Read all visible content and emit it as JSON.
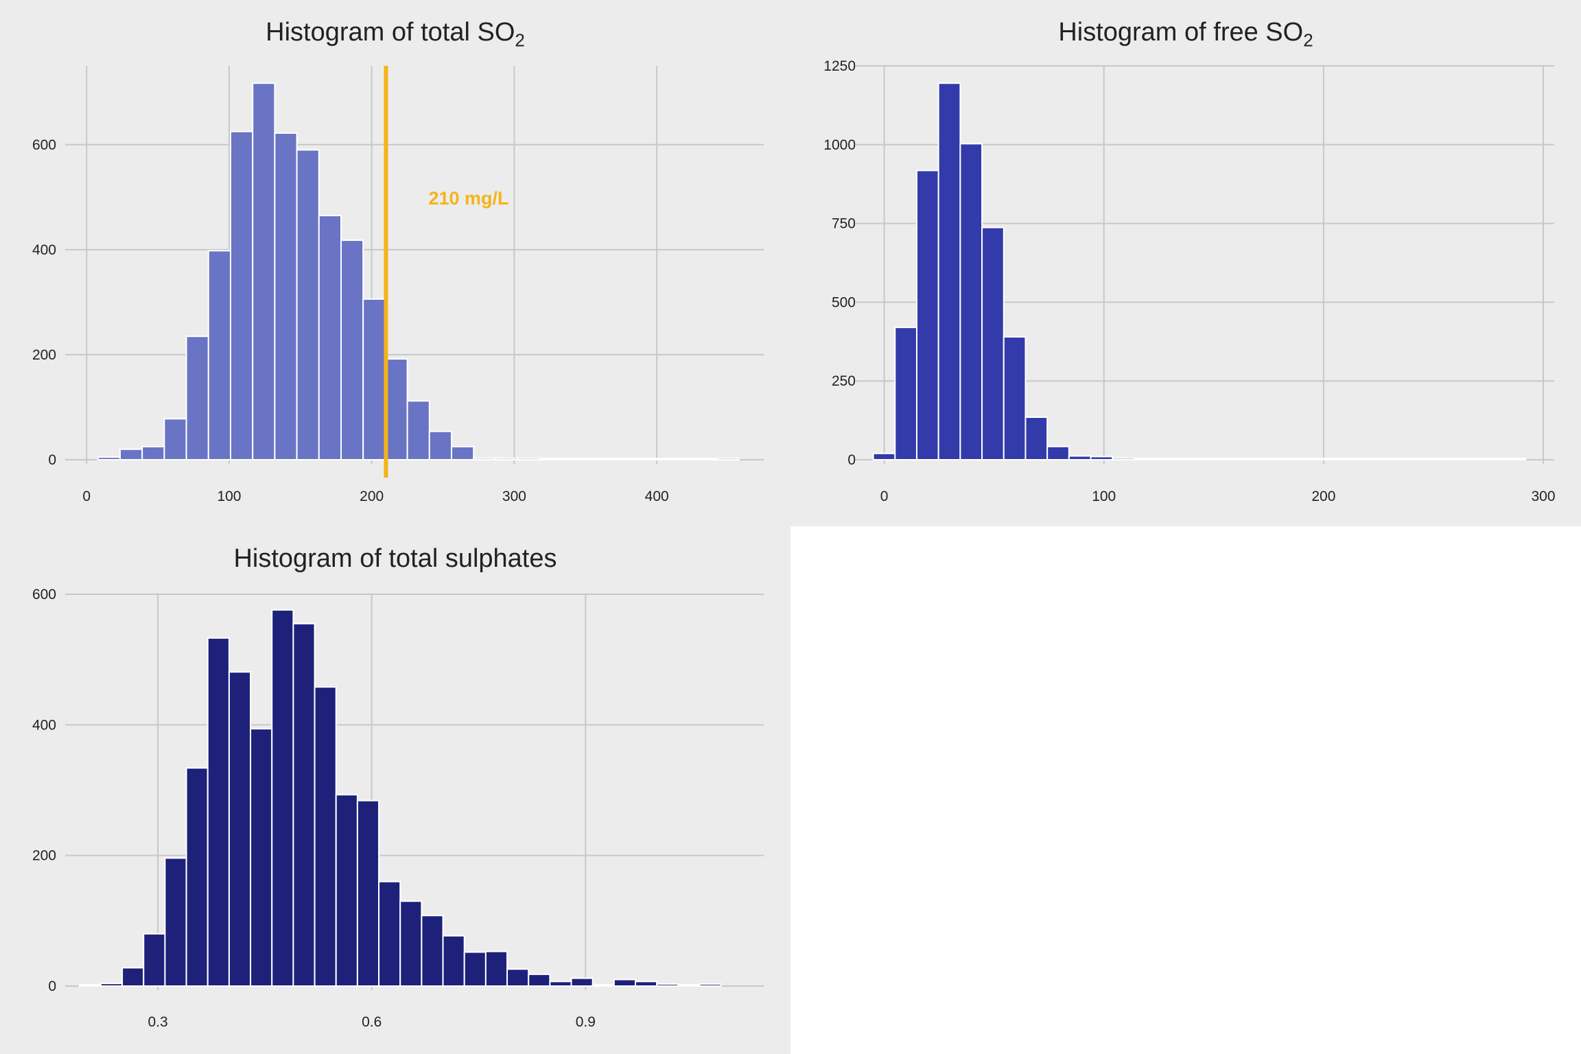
{
  "colors": {
    "panel_bg": "#ececec",
    "grid": "#c8c8c8",
    "bar_edge": "#ffffff",
    "refline": "#f5b319"
  },
  "chart_data": [
    {
      "type": "bar",
      "title_main": "Histogram of total SO",
      "title_sub": "2",
      "color": "#6a74c4",
      "bin_start": 8,
      "bin_width": 15.5,
      "nbins": 29,
      "values": [
        5,
        20,
        25,
        78,
        235,
        398,
        625,
        717,
        622,
        590,
        465,
        418,
        306,
        192,
        112,
        54,
        25,
        3,
        3,
        3,
        2,
        2,
        2,
        2,
        2,
        2,
        2,
        2,
        3
      ],
      "xlim": [
        -15,
        475
      ],
      "ylim": [
        0,
        750
      ],
      "xticks": [
        0,
        100,
        200,
        300,
        400
      ],
      "yticks": [
        0,
        200,
        400,
        600
      ],
      "refline": {
        "x": 210,
        "label": "210 mg/L"
      }
    },
    {
      "type": "bar",
      "title_main": "Histogram of free SO",
      "title_sub": "2",
      "color": "#323ba9",
      "bin_start": -5,
      "bin_width": 9.9,
      "nbins": 30,
      "values": [
        20,
        420,
        918,
        1195,
        1003,
        737,
        390,
        135,
        42,
        12,
        10,
        5,
        3,
        2,
        2,
        1,
        1,
        1,
        1,
        1,
        1,
        1,
        1,
        1,
        1,
        1,
        1,
        1,
        1,
        1
      ],
      "xlim": [
        -13,
        305
      ],
      "ylim": [
        0,
        1250
      ],
      "xticks": [
        0,
        100,
        200,
        300
      ],
      "yticks": [
        0,
        250,
        500,
        750,
        1000,
        1250
      ]
    },
    {
      "type": "bar",
      "title_main": "Histogram of total sulphates",
      "title_sub": "",
      "color": "#1e217a",
      "bin_start": 0.19,
      "bin_width": 0.03,
      "nbins": 30,
      "values": [
        2,
        4,
        28,
        80,
        196,
        334,
        533,
        481,
        394,
        576,
        555,
        458,
        293,
        284,
        160,
        130,
        108,
        77,
        52,
        53,
        26,
        18,
        7,
        12,
        2,
        10,
        7,
        3,
        2,
        3
      ],
      "xlim": [
        0.17,
        1.15
      ],
      "ylim": [
        0,
        600
      ],
      "xticks": [
        0.3,
        0.6,
        0.9
      ],
      "yticks": [
        0,
        200,
        400,
        600
      ]
    }
  ]
}
